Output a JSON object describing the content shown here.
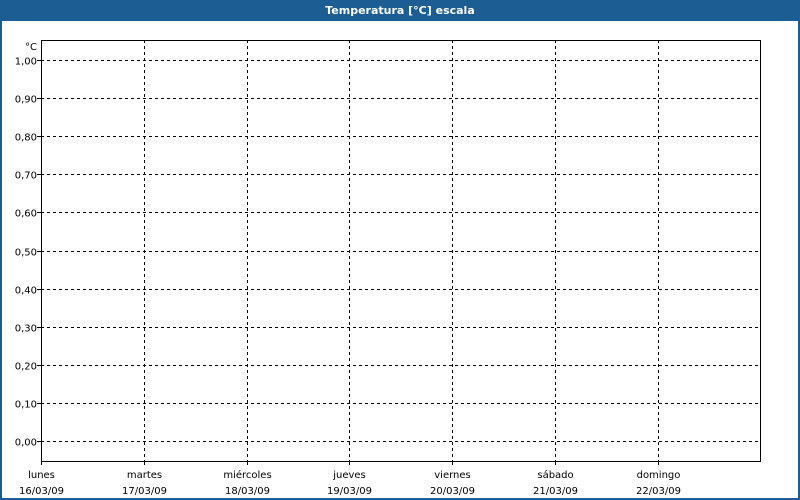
{
  "window": {
    "title": "Temperatura [°C] escala"
  },
  "chart_data": {
    "type": "line",
    "title": "Temperatura [°C] escala",
    "ylabel": "°C",
    "xlabel": "",
    "ylim": [
      0,
      1
    ],
    "yticks": [
      1.0,
      0.9,
      0.8,
      0.7,
      0.6,
      0.5,
      0.4,
      0.3,
      0.2,
      0.1,
      0.0
    ],
    "ytick_labels": [
      "1,00",
      "0,90",
      "0,80",
      "0,70",
      "0,60",
      "0,50",
      "0,40",
      "0,30",
      "0,20",
      "0,10",
      "0,00"
    ],
    "categories": [
      {
        "day": "lunes",
        "date": "16/03/09"
      },
      {
        "day": "martes",
        "date": "17/03/09"
      },
      {
        "day": "miércoles",
        "date": "18/03/09"
      },
      {
        "day": "jueves",
        "date": "19/03/09"
      },
      {
        "day": "viernes",
        "date": "20/03/09"
      },
      {
        "day": "sábado",
        "date": "21/03/09"
      },
      {
        "day": "domingo",
        "date": "22/03/09"
      }
    ],
    "series": [],
    "grid": true,
    "colors": {
      "titlebar": "#1c5e94",
      "grid": "#000000"
    }
  }
}
